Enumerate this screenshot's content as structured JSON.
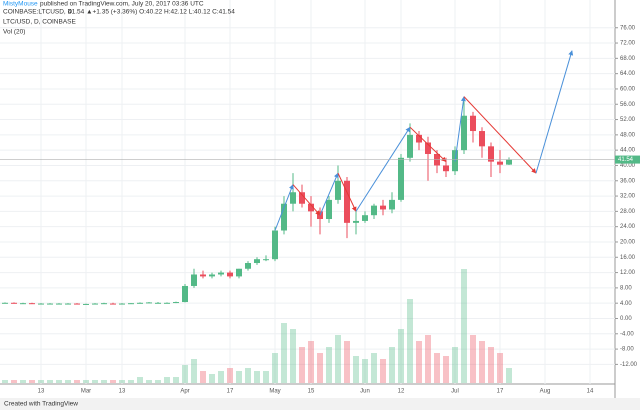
{
  "header": {
    "author": "MistyMouse",
    "published": "published on TradingView.com, July 20, 2017 03:36 UTC",
    "symbol": "COINBASE:LTCUSD, D",
    "quote": "41.54 ▲+1.35 (+3.36%) O:40.22 H:42.12 L:40.12 C:41.54"
  },
  "chart_data": {
    "type": "candlestick",
    "title": "LTC/USD, D, COINBASE",
    "volume_label": "Vol (20)",
    "up_color": "#53b987",
    "down_color": "#eb4d5c",
    "grid": true,
    "categories": [
      null,
      null,
      null,
      null,
      "13",
      null,
      null,
      null,
      null,
      "Mar",
      null,
      null,
      null,
      "13",
      null,
      null,
      null,
      null,
      null,
      null,
      "Apr",
      null,
      null,
      null,
      null,
      "17",
      null,
      null,
      null,
      null,
      "May",
      null,
      null,
      null,
      "15",
      null,
      null,
      null,
      null,
      null,
      "Jun",
      null,
      null,
      null,
      "12",
      null,
      null,
      null,
      null,
      null,
      "Jul",
      null,
      null,
      null,
      null,
      "17",
      null,
      null,
      null,
      null,
      "Aug",
      null,
      null,
      null,
      null,
      "14",
      null,
      null
    ],
    "open": [
      4.1,
      4.1,
      4.0,
      4.0,
      3.9,
      3.9,
      3.9,
      3.9,
      3.9,
      3.8,
      3.8,
      3.9,
      3.9,
      3.8,
      3.9,
      4.0,
      4.1,
      4.1,
      4.1,
      4.1,
      4.3,
      8.5,
      11.5,
      11.0,
      11.5,
      12.0,
      11.0,
      13.0,
      14.5,
      15.5,
      15.5,
      23.0,
      30.0,
      33.0,
      30.0,
      28.0,
      26.0,
      31.0,
      36.0,
      25.0,
      25.5,
      27.0,
      29.5,
      28.5,
      31.0,
      42.0,
      48.0,
      46.0,
      43.0,
      40.0,
      38.5,
      44.0,
      53.0,
      49.0,
      45.0,
      41.0,
      40.22,
      null,
      null,
      null,
      null,
      null,
      null,
      null,
      null,
      null,
      null,
      null
    ],
    "high": [
      4.2,
      4.2,
      4.1,
      4.1,
      4.0,
      4.0,
      4.0,
      4.0,
      4.0,
      3.9,
      4.0,
      4.1,
      4.1,
      4.0,
      4.0,
      4.2,
      4.3,
      4.3,
      4.2,
      4.4,
      9.0,
      13.0,
      12.5,
      12.0,
      12.5,
      12.5,
      13.0,
      15.0,
      16.0,
      16.5,
      24.0,
      32.0,
      38.0,
      35.0,
      32.0,
      29.0,
      32.0,
      40.0,
      37.0,
      28.0,
      28.0,
      30.0,
      31.0,
      33.0,
      43.0,
      51.0,
      49.0,
      47.5,
      44.0,
      42.0,
      45.0,
      58.0,
      54.0,
      50.0,
      46.0,
      44.0,
      42.12,
      null,
      null,
      null,
      null,
      null,
      null,
      null,
      null,
      null,
      null,
      null
    ],
    "low": [
      4.0,
      3.9,
      3.9,
      3.9,
      3.8,
      3.8,
      3.8,
      3.8,
      3.8,
      3.7,
      3.7,
      3.8,
      3.7,
      3.7,
      3.8,
      3.9,
      4.0,
      4.0,
      4.0,
      4.0,
      4.2,
      8.0,
      10.5,
      10.5,
      11.0,
      10.5,
      10.5,
      12.5,
      14.0,
      15.0,
      15.0,
      22.0,
      28.0,
      29.0,
      24.0,
      22.0,
      25.0,
      30.0,
      21.0,
      22.0,
      25.0,
      26.0,
      27.0,
      27.5,
      30.5,
      41.0,
      44.0,
      36.0,
      38.0,
      37.0,
      37.5,
      43.0,
      46.0,
      42.0,
      37.0,
      38.0,
      40.12,
      null,
      null,
      null,
      null,
      null,
      null,
      null,
      null,
      null,
      null,
      null
    ],
    "close": [
      4.1,
      4.0,
      4.0,
      3.9,
      3.9,
      3.9,
      3.9,
      3.9,
      3.8,
      3.8,
      3.9,
      4.0,
      3.8,
      3.9,
      4.0,
      4.1,
      4.2,
      4.1,
      4.1,
      4.3,
      8.5,
      11.5,
      11.0,
      11.5,
      12.0,
      11.0,
      13.0,
      14.5,
      15.5,
      15.5,
      23.0,
      30.0,
      33.0,
      30.0,
      28.0,
      26.0,
      31.0,
      36.0,
      25.0,
      25.5,
      27.0,
      29.5,
      28.5,
      31.0,
      42.0,
      48.0,
      46.0,
      43.0,
      40.0,
      38.5,
      44.0,
      53.0,
      49.0,
      45.0,
      41.0,
      40.2,
      41.54,
      null,
      null,
      null,
      null,
      null,
      null,
      null,
      null,
      null,
      null,
      null
    ],
    "volume": [
      1,
      1,
      1,
      1,
      1,
      1,
      1,
      1,
      1,
      1,
      1,
      1,
      1,
      1,
      1,
      2,
      1,
      1,
      2,
      2,
      6,
      8,
      4,
      3,
      4,
      5,
      4,
      5,
      4,
      4,
      10,
      20,
      18,
      12,
      14,
      10,
      12,
      16,
      14,
      9,
      8,
      10,
      8,
      12,
      18,
      28,
      14,
      16,
      10,
      9,
      12,
      38,
      16,
      14,
      12,
      10,
      5,
      null,
      null,
      null,
      null,
      null,
      null,
      null,
      null,
      null,
      null,
      null
    ],
    "ylim": [
      -20,
      77.5
    ],
    "yticks": [
      {
        "value": 76,
        "label": "76.00"
      },
      {
        "value": 72,
        "label": "72.00"
      },
      {
        "value": 68,
        "label": "68.00"
      },
      {
        "value": 64,
        "label": "64.00"
      },
      {
        "value": 60,
        "label": "60.00"
      },
      {
        "value": 56,
        "label": "56.00"
      },
      {
        "value": 52,
        "label": "52.00"
      },
      {
        "value": 48,
        "label": "48.00"
      },
      {
        "value": 44,
        "label": "44.00"
      },
      {
        "value": 40,
        "label": "40.00"
      },
      {
        "value": 36,
        "label": "36.00"
      },
      {
        "value": 32,
        "label": "32.00"
      },
      {
        "value": 28,
        "label": "28.00"
      },
      {
        "value": 24,
        "label": "24.00"
      },
      {
        "value": 20,
        "label": "20.00"
      },
      {
        "value": 16,
        "label": "16.00"
      },
      {
        "value": 12,
        "label": "12.00"
      },
      {
        "value": 8,
        "label": "8.00"
      },
      {
        "value": 4,
        "label": "4.00"
      },
      {
        "value": 0,
        "label": "0.00"
      },
      {
        "value": -4,
        "label": "-4.00"
      },
      {
        "value": -8,
        "label": "-8.00"
      },
      {
        "value": -12,
        "label": "-12.00"
      }
    ],
    "last_price": {
      "value": 41.54,
      "label": "41.54"
    }
  },
  "footer": "Created with TradingView"
}
